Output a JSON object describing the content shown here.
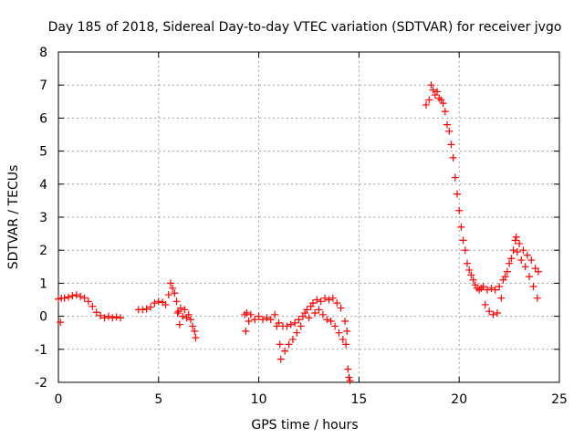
{
  "chart_data": {
    "type": "scatter",
    "title": "Day 185 of 2018, Sidereal Day-to-day VTEC variation (SDTVAR) for receiver jvgo",
    "xlabel": "GPS time / hours",
    "ylabel": "SDTVAR / TECUs",
    "xlim": [
      0,
      25
    ],
    "ylim": [
      -2,
      8
    ],
    "x_ticks": [
      0,
      5,
      10,
      15,
      20,
      25
    ],
    "y_ticks": [
      -2,
      -1,
      0,
      1,
      2,
      3,
      4,
      5,
      6,
      7,
      8
    ],
    "grid": true,
    "marker": "+",
    "color": "#ff0000",
    "series": [
      {
        "name": "SDTVAR",
        "points": [
          [
            0.0,
            0.52
          ],
          [
            0.1,
            -0.18
          ],
          [
            0.15,
            0.55
          ],
          [
            0.3,
            0.55
          ],
          [
            0.5,
            0.58
          ],
          [
            0.7,
            0.62
          ],
          [
            0.9,
            0.65
          ],
          [
            1.1,
            0.6
          ],
          [
            1.3,
            0.55
          ],
          [
            1.5,
            0.45
          ],
          [
            1.7,
            0.3
          ],
          [
            1.9,
            0.12
          ],
          [
            2.1,
            0.02
          ],
          [
            2.3,
            -0.05
          ],
          [
            2.5,
            0.0
          ],
          [
            2.7,
            -0.05
          ],
          [
            2.9,
            -0.02
          ],
          [
            3.1,
            -0.05
          ],
          [
            4.0,
            0.2
          ],
          [
            4.2,
            0.2
          ],
          [
            4.4,
            0.22
          ],
          [
            4.6,
            0.28
          ],
          [
            4.8,
            0.4
          ],
          [
            5.0,
            0.45
          ],
          [
            5.2,
            0.42
          ],
          [
            5.35,
            0.35
          ],
          [
            5.5,
            0.65
          ],
          [
            5.6,
            1.0
          ],
          [
            5.7,
            0.85
          ],
          [
            5.8,
            0.7
          ],
          [
            5.9,
            0.45
          ],
          [
            5.95,
            0.1
          ],
          [
            6.0,
            0.15
          ],
          [
            6.05,
            -0.25
          ],
          [
            6.1,
            0.25
          ],
          [
            6.2,
            0.0
          ],
          [
            6.3,
            0.2
          ],
          [
            6.4,
            -0.05
          ],
          [
            6.5,
            0.05
          ],
          [
            6.6,
            -0.1
          ],
          [
            6.7,
            -0.3
          ],
          [
            6.8,
            -0.45
          ],
          [
            6.85,
            -0.65
          ],
          [
            9.3,
            0.05
          ],
          [
            9.35,
            -0.45
          ],
          [
            9.4,
            0.1
          ],
          [
            9.5,
            -0.15
          ],
          [
            9.6,
            0.05
          ],
          [
            9.8,
            -0.1
          ],
          [
            10.0,
            0.0
          ],
          [
            10.2,
            -0.1
          ],
          [
            10.4,
            -0.05
          ],
          [
            10.6,
            -0.1
          ],
          [
            10.8,
            0.05
          ],
          [
            10.9,
            -0.3
          ],
          [
            11.0,
            -0.2
          ],
          [
            11.05,
            -0.85
          ],
          [
            11.1,
            -1.3
          ],
          [
            11.2,
            -0.3
          ],
          [
            11.3,
            -1.05
          ],
          [
            11.4,
            -0.3
          ],
          [
            11.5,
            -0.85
          ],
          [
            11.6,
            -0.25
          ],
          [
            11.7,
            -0.7
          ],
          [
            11.8,
            -0.2
          ],
          [
            11.9,
            -0.5
          ],
          [
            12.0,
            -0.1
          ],
          [
            12.1,
            -0.3
          ],
          [
            12.2,
            0.0
          ],
          [
            12.3,
            0.1
          ],
          [
            12.4,
            0.2
          ],
          [
            12.5,
            -0.05
          ],
          [
            12.6,
            0.3
          ],
          [
            12.7,
            0.4
          ],
          [
            12.8,
            0.1
          ],
          [
            12.9,
            0.5
          ],
          [
            13.0,
            0.2
          ],
          [
            13.1,
            0.45
          ],
          [
            13.2,
            0.05
          ],
          [
            13.3,
            0.55
          ],
          [
            13.4,
            -0.1
          ],
          [
            13.5,
            0.5
          ],
          [
            13.6,
            -0.15
          ],
          [
            13.7,
            0.55
          ],
          [
            13.8,
            -0.3
          ],
          [
            13.9,
            0.4
          ],
          [
            14.0,
            -0.5
          ],
          [
            14.1,
            0.25
          ],
          [
            14.2,
            -0.7
          ],
          [
            14.3,
            -0.15
          ],
          [
            14.35,
            -0.85
          ],
          [
            14.4,
            -0.45
          ],
          [
            14.45,
            -1.6
          ],
          [
            14.5,
            -1.85
          ],
          [
            14.55,
            -1.95
          ],
          [
            18.35,
            6.4
          ],
          [
            18.5,
            6.55
          ],
          [
            18.6,
            7.0
          ],
          [
            18.7,
            6.85
          ],
          [
            18.8,
            6.7
          ],
          [
            18.9,
            6.8
          ],
          [
            19.0,
            6.6
          ],
          [
            19.1,
            6.55
          ],
          [
            19.2,
            6.45
          ],
          [
            19.3,
            6.2
          ],
          [
            19.4,
            5.8
          ],
          [
            19.5,
            5.6
          ],
          [
            19.6,
            5.2
          ],
          [
            19.7,
            4.8
          ],
          [
            19.8,
            4.2
          ],
          [
            19.9,
            3.7
          ],
          [
            20.0,
            3.2
          ],
          [
            20.1,
            2.7
          ],
          [
            20.2,
            2.3
          ],
          [
            20.3,
            2.0
          ],
          [
            20.4,
            1.6
          ],
          [
            20.5,
            1.4
          ],
          [
            20.6,
            1.25
          ],
          [
            20.7,
            1.1
          ],
          [
            20.8,
            0.95
          ],
          [
            20.9,
            0.85
          ],
          [
            21.0,
            0.8
          ],
          [
            21.1,
            0.85
          ],
          [
            21.2,
            0.9
          ],
          [
            21.3,
            0.35
          ],
          [
            21.4,
            0.8
          ],
          [
            21.5,
            0.15
          ],
          [
            21.6,
            0.85
          ],
          [
            21.7,
            0.05
          ],
          [
            21.8,
            0.8
          ],
          [
            21.9,
            0.1
          ],
          [
            22.0,
            0.9
          ],
          [
            22.1,
            0.55
          ],
          [
            22.2,
            1.1
          ],
          [
            22.3,
            1.2
          ],
          [
            22.4,
            1.35
          ],
          [
            22.5,
            1.6
          ],
          [
            22.6,
            1.75
          ],
          [
            22.7,
            2.0
          ],
          [
            22.8,
            2.3
          ],
          [
            22.85,
            2.4
          ],
          [
            22.9,
            1.95
          ],
          [
            23.0,
            2.2
          ],
          [
            23.1,
            1.7
          ],
          [
            23.2,
            2.0
          ],
          [
            23.3,
            1.5
          ],
          [
            23.4,
            1.85
          ],
          [
            23.5,
            1.2
          ],
          [
            23.6,
            1.7
          ],
          [
            23.7,
            0.9
          ],
          [
            23.8,
            1.45
          ],
          [
            23.9,
            0.55
          ],
          [
            23.95,
            1.35
          ]
        ]
      }
    ]
  }
}
